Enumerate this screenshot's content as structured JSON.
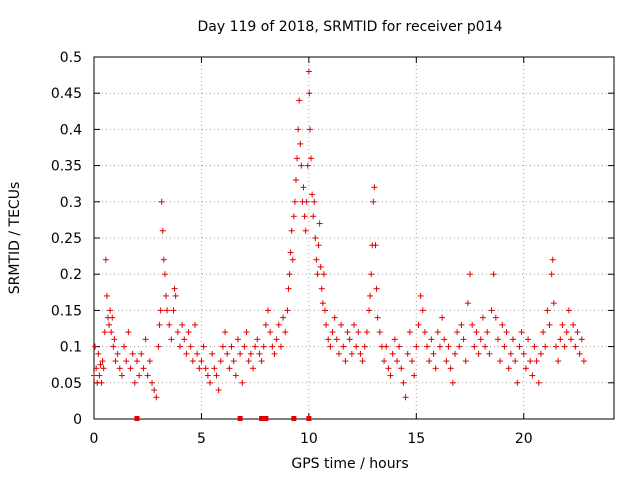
{
  "chart_data": {
    "type": "scatter",
    "title": "Day 119 of 2018, SRMTID for receiver p014",
    "xlabel": "GPS time / hours",
    "ylabel": "SRMTID / TECUs",
    "xlim": [
      0,
      24.2
    ],
    "ylim": [
      0,
      0.5
    ],
    "xticks": [
      0,
      5,
      10,
      15,
      20
    ],
    "xtick_labels": [
      "0",
      "5",
      "10",
      "15",
      "20"
    ],
    "yticks": [
      0,
      0.05,
      0.1,
      0.15,
      0.2,
      0.25,
      0.3,
      0.35,
      0.4,
      0.45,
      0.5
    ],
    "ytick_labels": [
      "0",
      "0.05",
      "0.1",
      "0.15",
      "0.2",
      "0.25",
      "0.3",
      "0.35",
      "0.4",
      "0.45",
      "0.5"
    ],
    "grid": true,
    "marker": "plus",
    "color": "#e00000",
    "series": [
      {
        "name": "SRMTID",
        "points": [
          [
            0.0,
            0.06
          ],
          [
            0.05,
            0.1
          ],
          [
            0.1,
            0.07
          ],
          [
            0.15,
            0.05
          ],
          [
            0.2,
            0.09
          ],
          [
            0.25,
            0.06
          ],
          [
            0.3,
            0.075
          ],
          [
            0.35,
            0.05
          ],
          [
            0.4,
            0.08
          ],
          [
            0.45,
            0.07
          ],
          [
            0.5,
            0.12
          ],
          [
            0.55,
            0.22
          ],
          [
            0.6,
            0.17
          ],
          [
            0.65,
            0.14
          ],
          [
            0.7,
            0.13
          ],
          [
            0.75,
            0.15
          ],
          [
            0.8,
            0.12
          ],
          [
            0.85,
            0.14
          ],
          [
            0.9,
            0.1
          ],
          [
            0.95,
            0.11
          ],
          [
            1.0,
            0.08
          ],
          [
            1.1,
            0.09
          ],
          [
            1.2,
            0.07
          ],
          [
            1.3,
            0.06
          ],
          [
            1.4,
            0.1
          ],
          [
            1.5,
            0.08
          ],
          [
            1.6,
            0.12
          ],
          [
            1.7,
            0.07
          ],
          [
            1.8,
            0.09
          ],
          [
            1.9,
            0.05
          ],
          [
            2.0,
            0.08
          ],
          [
            2.1,
            0.06
          ],
          [
            2.2,
            0.09
          ],
          [
            2.3,
            0.07
          ],
          [
            2.4,
            0.11
          ],
          [
            2.5,
            0.06
          ],
          [
            2.6,
            0.08
          ],
          [
            2.7,
            0.05
          ],
          [
            2.8,
            0.04
          ],
          [
            2.9,
            0.03
          ],
          [
            3.0,
            0.1
          ],
          [
            3.05,
            0.13
          ],
          [
            3.1,
            0.15
          ],
          [
            3.15,
            0.3
          ],
          [
            3.2,
            0.26
          ],
          [
            3.25,
            0.22
          ],
          [
            3.3,
            0.2
          ],
          [
            3.35,
            0.17
          ],
          [
            3.4,
            0.15
          ],
          [
            3.5,
            0.13
          ],
          [
            3.6,
            0.11
          ],
          [
            3.7,
            0.15
          ],
          [
            3.75,
            0.18
          ],
          [
            3.8,
            0.17
          ],
          [
            3.9,
            0.12
          ],
          [
            4.0,
            0.1
          ],
          [
            4.1,
            0.13
          ],
          [
            4.2,
            0.11
          ],
          [
            4.3,
            0.09
          ],
          [
            4.4,
            0.12
          ],
          [
            4.5,
            0.1
          ],
          [
            4.6,
            0.08
          ],
          [
            4.7,
            0.13
          ],
          [
            4.8,
            0.09
          ],
          [
            4.9,
            0.07
          ],
          [
            5.0,
            0.08
          ],
          [
            5.1,
            0.1
          ],
          [
            5.2,
            0.07
          ],
          [
            5.3,
            0.06
          ],
          [
            5.4,
            0.05
          ],
          [
            5.5,
            0.09
          ],
          [
            5.6,
            0.07
          ],
          [
            5.7,
            0.06
          ],
          [
            5.8,
            0.04
          ],
          [
            5.9,
            0.08
          ],
          [
            6.0,
            0.1
          ],
          [
            6.1,
            0.12
          ],
          [
            6.2,
            0.09
          ],
          [
            6.3,
            0.07
          ],
          [
            6.4,
            0.1
          ],
          [
            6.5,
            0.08
          ],
          [
            6.6,
            0.06
          ],
          [
            6.7,
            0.11
          ],
          [
            6.8,
            0.09
          ],
          [
            6.9,
            0.05
          ],
          [
            7.0,
            0.1
          ],
          [
            7.1,
            0.12
          ],
          [
            7.2,
            0.08
          ],
          [
            7.3,
            0.09
          ],
          [
            7.4,
            0.07
          ],
          [
            7.5,
            0.1
          ],
          [
            7.6,
            0.11
          ],
          [
            7.7,
            0.09
          ],
          [
            7.8,
            0.08
          ],
          [
            7.9,
            0.1
          ],
          [
            8.0,
            0.13
          ],
          [
            8.1,
            0.15
          ],
          [
            8.2,
            0.12
          ],
          [
            8.3,
            0.1
          ],
          [
            8.4,
            0.09
          ],
          [
            8.5,
            0.11
          ],
          [
            8.6,
            0.13
          ],
          [
            8.7,
            0.1
          ],
          [
            8.8,
            0.14
          ],
          [
            8.9,
            0.12
          ],
          [
            9.0,
            0.15
          ],
          [
            9.05,
            0.18
          ],
          [
            9.1,
            0.2
          ],
          [
            9.15,
            0.23
          ],
          [
            9.2,
            0.26
          ],
          [
            9.25,
            0.22
          ],
          [
            9.3,
            0.28
          ],
          [
            9.35,
            0.3
          ],
          [
            9.4,
            0.33
          ],
          [
            9.45,
            0.36
          ],
          [
            9.5,
            0.4
          ],
          [
            9.55,
            0.44
          ],
          [
            9.6,
            0.38
          ],
          [
            9.65,
            0.35
          ],
          [
            9.7,
            0.3
          ],
          [
            9.75,
            0.32
          ],
          [
            9.8,
            0.28
          ],
          [
            9.85,
            0.26
          ],
          [
            9.9,
            0.3
          ],
          [
            9.95,
            0.35
          ],
          [
            10.0,
            0.48
          ],
          [
            10.02,
            0.45
          ],
          [
            10.05,
            0.4
          ],
          [
            10.1,
            0.36
          ],
          [
            10.15,
            0.31
          ],
          [
            10.2,
            0.28
          ],
          [
            10.25,
            0.3
          ],
          [
            10.3,
            0.25
          ],
          [
            10.35,
            0.22
          ],
          [
            10.4,
            0.2
          ],
          [
            10.45,
            0.24
          ],
          [
            10.5,
            0.27
          ],
          [
            10.55,
            0.21
          ],
          [
            10.6,
            0.18
          ],
          [
            10.65,
            0.16
          ],
          [
            10.7,
            0.2
          ],
          [
            10.75,
            0.15
          ],
          [
            10.8,
            0.13
          ],
          [
            10.9,
            0.11
          ],
          [
            11.0,
            0.1
          ],
          [
            11.1,
            0.12
          ],
          [
            11.2,
            0.14
          ],
          [
            11.3,
            0.11
          ],
          [
            11.4,
            0.09
          ],
          [
            11.5,
            0.13
          ],
          [
            11.6,
            0.1
          ],
          [
            11.7,
            0.08
          ],
          [
            11.8,
            0.12
          ],
          [
            11.9,
            0.11
          ],
          [
            12.0,
            0.09
          ],
          [
            12.1,
            0.13
          ],
          [
            12.2,
            0.1
          ],
          [
            12.3,
            0.12
          ],
          [
            12.4,
            0.09
          ],
          [
            12.5,
            0.08
          ],
          [
            12.6,
            0.1
          ],
          [
            12.7,
            0.12
          ],
          [
            12.8,
            0.15
          ],
          [
            12.85,
            0.17
          ],
          [
            12.9,
            0.2
          ],
          [
            12.95,
            0.24
          ],
          [
            13.0,
            0.3
          ],
          [
            13.05,
            0.32
          ],
          [
            13.1,
            0.24
          ],
          [
            13.15,
            0.18
          ],
          [
            13.2,
            0.14
          ],
          [
            13.3,
            0.12
          ],
          [
            13.4,
            0.1
          ],
          [
            13.5,
            0.08
          ],
          [
            13.6,
            0.1
          ],
          [
            13.7,
            0.07
          ],
          [
            13.8,
            0.06
          ],
          [
            13.9,
            0.09
          ],
          [
            14.0,
            0.11
          ],
          [
            14.1,
            0.08
          ],
          [
            14.2,
            0.1
          ],
          [
            14.3,
            0.07
          ],
          [
            14.4,
            0.05
          ],
          [
            14.5,
            0.03
          ],
          [
            14.6,
            0.09
          ],
          [
            14.7,
            0.12
          ],
          [
            14.8,
            0.08
          ],
          [
            14.9,
            0.06
          ],
          [
            15.0,
            0.1
          ],
          [
            15.1,
            0.13
          ],
          [
            15.2,
            0.17
          ],
          [
            15.3,
            0.15
          ],
          [
            15.4,
            0.12
          ],
          [
            15.5,
            0.1
          ],
          [
            15.6,
            0.08
          ],
          [
            15.7,
            0.11
          ],
          [
            15.8,
            0.09
          ],
          [
            15.9,
            0.07
          ],
          [
            16.0,
            0.12
          ],
          [
            16.1,
            0.1
          ],
          [
            16.2,
            0.14
          ],
          [
            16.3,
            0.11
          ],
          [
            16.4,
            0.08
          ],
          [
            16.5,
            0.1
          ],
          [
            16.6,
            0.07
          ],
          [
            16.7,
            0.05
          ],
          [
            16.8,
            0.09
          ],
          [
            16.9,
            0.12
          ],
          [
            17.0,
            0.1
          ],
          [
            17.1,
            0.13
          ],
          [
            17.2,
            0.11
          ],
          [
            17.3,
            0.08
          ],
          [
            17.4,
            0.16
          ],
          [
            17.5,
            0.2
          ],
          [
            17.6,
            0.13
          ],
          [
            17.7,
            0.1
          ],
          [
            17.8,
            0.12
          ],
          [
            17.9,
            0.09
          ],
          [
            18.0,
            0.11
          ],
          [
            18.1,
            0.14
          ],
          [
            18.2,
            0.1
          ],
          [
            18.3,
            0.12
          ],
          [
            18.4,
            0.09
          ],
          [
            18.5,
            0.15
          ],
          [
            18.6,
            0.2
          ],
          [
            18.7,
            0.14
          ],
          [
            18.8,
            0.11
          ],
          [
            18.9,
            0.08
          ],
          [
            19.0,
            0.13
          ],
          [
            19.1,
            0.1
          ],
          [
            19.2,
            0.12
          ],
          [
            19.3,
            0.07
          ],
          [
            19.4,
            0.09
          ],
          [
            19.5,
            0.11
          ],
          [
            19.6,
            0.08
          ],
          [
            19.7,
            0.05
          ],
          [
            19.8,
            0.1
          ],
          [
            19.9,
            0.12
          ],
          [
            20.0,
            0.09
          ],
          [
            20.1,
            0.07
          ],
          [
            20.2,
            0.11
          ],
          [
            20.3,
            0.08
          ],
          [
            20.4,
            0.06
          ],
          [
            20.5,
            0.1
          ],
          [
            20.6,
            0.08
          ],
          [
            20.7,
            0.05
          ],
          [
            20.8,
            0.09
          ],
          [
            20.9,
            0.12
          ],
          [
            21.0,
            0.1
          ],
          [
            21.1,
            0.15
          ],
          [
            21.2,
            0.13
          ],
          [
            21.3,
            0.2
          ],
          [
            21.35,
            0.22
          ],
          [
            21.4,
            0.16
          ],
          [
            21.5,
            0.1
          ],
          [
            21.6,
            0.08
          ],
          [
            21.7,
            0.11
          ],
          [
            21.8,
            0.13
          ],
          [
            21.9,
            0.1
          ],
          [
            22.0,
            0.12
          ],
          [
            22.1,
            0.15
          ],
          [
            22.2,
            0.11
          ],
          [
            22.3,
            0.13
          ],
          [
            22.4,
            0.1
          ],
          [
            22.5,
            0.12
          ],
          [
            22.6,
            0.09
          ],
          [
            22.7,
            0.11
          ],
          [
            22.8,
            0.08
          ]
        ]
      }
    ],
    "baseline_markers": [
      2.0,
      6.8,
      7.8,
      8.0,
      9.3,
      10.0
    ]
  }
}
